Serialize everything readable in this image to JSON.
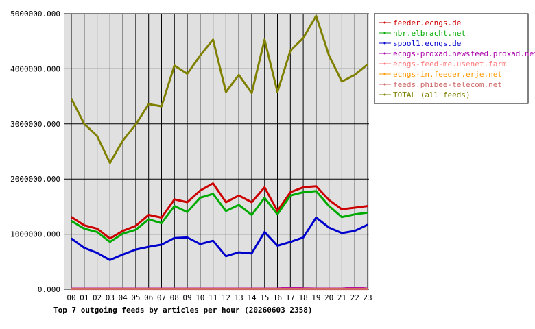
{
  "chart_data": {
    "type": "line",
    "title": "Top 7 outgoing feeds by articles per hour (20260603 2358)",
    "xlabel": "",
    "ylabel": "",
    "x": [
      "00",
      "01",
      "02",
      "03",
      "04",
      "05",
      "06",
      "07",
      "08",
      "09",
      "10",
      "11",
      "12",
      "13",
      "14",
      "15",
      "16",
      "17",
      "18",
      "19",
      "20",
      "21",
      "22",
      "23"
    ],
    "ylim": [
      0,
      5000000
    ],
    "yticks": [
      0,
      1000000,
      2000000,
      3000000,
      4000000,
      5000000
    ],
    "ytick_labels": [
      "0.000",
      "1000000.000",
      "2000000.000",
      "3000000.000",
      "4000000.000",
      "5000000.000"
    ],
    "grid": true,
    "legend_position": "right",
    "series": [
      {
        "name": "feeder.ecngs.de",
        "color": "#cc0000",
        "values": [
          1310000,
          1160000,
          1100000,
          920000,
          1060000,
          1150000,
          1350000,
          1300000,
          1630000,
          1580000,
          1790000,
          1920000,
          1580000,
          1700000,
          1580000,
          1850000,
          1420000,
          1760000,
          1850000,
          1870000,
          1620000,
          1450000,
          1480000,
          1510000
        ]
      },
      {
        "name": "nbr.elbracht.net",
        "color": "#00aa00",
        "values": [
          1240000,
          1100000,
          1040000,
          860000,
          1010000,
          1080000,
          1270000,
          1200000,
          1510000,
          1400000,
          1660000,
          1730000,
          1420000,
          1530000,
          1350000,
          1660000,
          1360000,
          1700000,
          1760000,
          1780000,
          1510000,
          1310000,
          1360000,
          1390000
        ]
      },
      {
        "name": "spool1.ecngs.de",
        "color": "#0000cc",
        "values": [
          920000,
          750000,
          660000,
          530000,
          630000,
          720000,
          770000,
          810000,
          930000,
          940000,
          820000,
          880000,
          600000,
          670000,
          650000,
          1040000,
          790000,
          860000,
          940000,
          1300000,
          1120000,
          1020000,
          1060000,
          1170000
        ]
      },
      {
        "name": "ecngs-proxad.newsfeed.proxad.net",
        "color": "#aa00aa",
        "values": [
          12000,
          12000,
          12000,
          12000,
          12000,
          12000,
          12000,
          12000,
          12000,
          12000,
          12000,
          12000,
          12000,
          12000,
          12000,
          12000,
          12000,
          30000,
          18000,
          12000,
          12000,
          12000,
          30000,
          12000
        ]
      },
      {
        "name": "ecngs-feed-me.usenet.farm",
        "color": "#ff7777",
        "values": [
          8000,
          8000,
          8000,
          8000,
          8000,
          8000,
          8000,
          8000,
          8000,
          8000,
          8000,
          8000,
          8000,
          8000,
          8000,
          8000,
          8000,
          8000,
          8000,
          8000,
          8000,
          8000,
          8000,
          8000
        ]
      },
      {
        "name": "ecngs-in.feeder.erje.net",
        "color": "#ff9900",
        "values": [
          6000,
          6000,
          6000,
          6000,
          6000,
          6000,
          6000,
          6000,
          6000,
          6000,
          6000,
          6000,
          6000,
          6000,
          6000,
          6000,
          6000,
          6000,
          6000,
          6000,
          6000,
          6000,
          6000,
          6000
        ]
      },
      {
        "name": "feeds.phibee-telecom.net",
        "color": "#cc6666",
        "values": [
          5000,
          5000,
          5000,
          5000,
          5000,
          5000,
          5000,
          5000,
          5000,
          5000,
          5000,
          5000,
          5000,
          5000,
          5000,
          5000,
          5000,
          5000,
          5000,
          5000,
          5000,
          5000,
          5000,
          5000
        ]
      },
      {
        "name": "TOTAL (all feeds)",
        "color": "#808000",
        "values": [
          3460000,
          3000000,
          2780000,
          2290000,
          2700000,
          2990000,
          3360000,
          3320000,
          4060000,
          3910000,
          4240000,
          4530000,
          3580000,
          3890000,
          3560000,
          4530000,
          3580000,
          4330000,
          4560000,
          4960000,
          4240000,
          3770000,
          3890000,
          4080000
        ]
      }
    ]
  }
}
